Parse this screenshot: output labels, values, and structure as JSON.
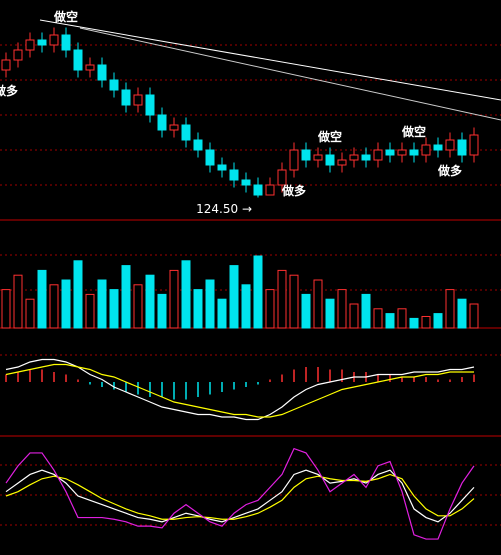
{
  "chart_data": [
    {
      "type": "candlestick",
      "up_color": "#ff3030",
      "down_color": "#00e5ee",
      "ylim": [
        120,
        160
      ],
      "open": [
        150,
        152,
        154,
        156,
        155,
        157,
        154,
        150,
        151,
        148,
        146,
        143,
        145,
        141,
        138,
        139,
        136,
        134,
        131,
        130,
        128,
        127,
        125,
        127,
        130,
        134,
        132,
        133,
        131,
        132,
        133,
        132,
        134,
        133,
        134,
        133,
        135,
        134,
        136,
        133
      ],
      "close": [
        152,
        154,
        156,
        155,
        157,
        154,
        150,
        151,
        148,
        146,
        143,
        145,
        141,
        138,
        139,
        136,
        134,
        131,
        130,
        128,
        127,
        125,
        127,
        130,
        134,
        132,
        133,
        131,
        132,
        133,
        132,
        134,
        133,
        134,
        133,
        135,
        134,
        136,
        133,
        137
      ],
      "high": [
        153.5,
        155.5,
        157.5,
        157.5,
        158.5,
        158.5,
        155.5,
        152.5,
        152.5,
        149.5,
        147.5,
        146.5,
        146.5,
        142.5,
        140.5,
        140.5,
        137.5,
        135.5,
        132.5,
        131.5,
        129.5,
        128.5,
        128.5,
        131.5,
        135.5,
        135.5,
        134.5,
        134.5,
        133.5,
        134.5,
        134.5,
        135.5,
        135.5,
        135.5,
        135.5,
        136.5,
        136.5,
        137.5,
        137.5,
        138.5
      ],
      "low": [
        148.5,
        150.5,
        152.5,
        153.5,
        153.5,
        152.5,
        148.5,
        148.5,
        146.5,
        144.5,
        141.5,
        141.5,
        139.5,
        136.5,
        136.5,
        134.5,
        132.5,
        129.5,
        128.5,
        126.5,
        125.5,
        124.5,
        125,
        125.5,
        128.5,
        130.5,
        130.5,
        129.5,
        129.5,
        130.5,
        130.5,
        130.5,
        131.5,
        131.5,
        131.5,
        131.5,
        132.5,
        132.5,
        131.5,
        131.5
      ],
      "annotations": [
        {
          "text": "做多",
          "at": 0
        },
        {
          "text": "做空",
          "at": 5
        },
        {
          "text": "做多",
          "at": 24
        },
        {
          "text": "做空",
          "at": 27
        },
        {
          "text": "做空",
          "at": 34
        },
        {
          "text": "做多",
          "at": 37
        }
      ],
      "low_label": {
        "text": "124.50 →",
        "at": 21,
        "value": 124.5
      }
    },
    {
      "type": "bar",
      "up_color": "#ff3030",
      "down_color": "#00e5ee",
      "ylim": [
        0,
        100
      ],
      "values": [
        40,
        55,
        30,
        60,
        45,
        50,
        70,
        35,
        50,
        40,
        65,
        45,
        55,
        35,
        60,
        70,
        40,
        50,
        30,
        65,
        45,
        75,
        40,
        60,
        55,
        35,
        50,
        30,
        40,
        25,
        35,
        20,
        15,
        20,
        10,
        12,
        15,
        40,
        30,
        25
      ]
    },
    {
      "type": "macd",
      "up_color": "#ff3030",
      "down_color": "#00e5ee",
      "ylim": [
        -2,
        2
      ],
      "values": [
        0.3,
        0.4,
        0.5,
        0.5,
        0.4,
        0.3,
        0.1,
        -0.1,
        -0.2,
        -0.3,
        -0.4,
        -0.5,
        -0.6,
        -0.6,
        -0.7,
        -0.7,
        -0.6,
        -0.5,
        -0.4,
        -0.3,
        -0.2,
        -0.1,
        0.1,
        0.3,
        0.5,
        0.6,
        0.6,
        0.5,
        0.5,
        0.4,
        0.4,
        0.3,
        0.3,
        0.2,
        0.2,
        0.2,
        0.1,
        0.1,
        0.2,
        0.3
      ],
      "series": [
        {
          "color": "#ffffff",
          "values": [
            0.5,
            0.6,
            0.8,
            0.9,
            0.9,
            0.8,
            0.6,
            0.3,
            0.1,
            -0.2,
            -0.4,
            -0.6,
            -0.8,
            -1,
            -1.1,
            -1.2,
            -1.3,
            -1.3,
            -1.4,
            -1.4,
            -1.5,
            -1.5,
            -1.3,
            -1,
            -0.6,
            -0.3,
            -0.1,
            0,
            0.1,
            0.2,
            0.2,
            0.3,
            0.3,
            0.3,
            0.4,
            0.4,
            0.4,
            0.5,
            0.5,
            0.6
          ]
        },
        {
          "color": "#ffff00",
          "values": [
            0.3,
            0.4,
            0.5,
            0.6,
            0.7,
            0.7,
            0.6,
            0.5,
            0.3,
            0.2,
            0,
            -0.2,
            -0.4,
            -0.6,
            -0.8,
            -0.9,
            -1,
            -1.1,
            -1.2,
            -1.3,
            -1.3,
            -1.4,
            -1.4,
            -1.3,
            -1.1,
            -0.9,
            -0.7,
            -0.5,
            -0.3,
            -0.2,
            -0.1,
            0,
            0.1,
            0.2,
            0.2,
            0.3,
            0.3,
            0.4,
            0.4,
            0.4
          ]
        }
      ]
    },
    {
      "type": "line",
      "ylim": [
        -20,
        110
      ],
      "series": [
        {
          "color": "#ffffff",
          "values": [
            50,
            60,
            70,
            75,
            70,
            60,
            45,
            40,
            35,
            30,
            25,
            20,
            18,
            15,
            20,
            25,
            22,
            18,
            15,
            20,
            25,
            30,
            40,
            50,
            70,
            75,
            70,
            60,
            62,
            65,
            60,
            70,
            75,
            60,
            30,
            20,
            15,
            25,
            40,
            55
          ]
        },
        {
          "color": "#ffff00",
          "values": [
            45,
            50,
            58,
            65,
            68,
            65,
            58,
            50,
            42,
            36,
            30,
            25,
            22,
            18,
            18,
            20,
            21,
            20,
            18,
            18,
            21,
            25,
            32,
            40,
            55,
            65,
            68,
            65,
            63,
            63,
            62,
            65,
            70,
            65,
            45,
            30,
            22,
            22,
            30,
            42
          ]
        },
        {
          "color": "#e020e0",
          "values": [
            60,
            80,
            95,
            95,
            75,
            50,
            20,
            20,
            20,
            18,
            15,
            10,
            10,
            8,
            25,
            35,
            25,
            15,
            10,
            25,
            35,
            40,
            55,
            70,
            100,
            95,
            75,
            50,
            60,
            70,
            55,
            80,
            85,
            50,
            0,
            -5,
            -5,
            30,
            60,
            80
          ]
        }
      ]
    }
  ]
}
